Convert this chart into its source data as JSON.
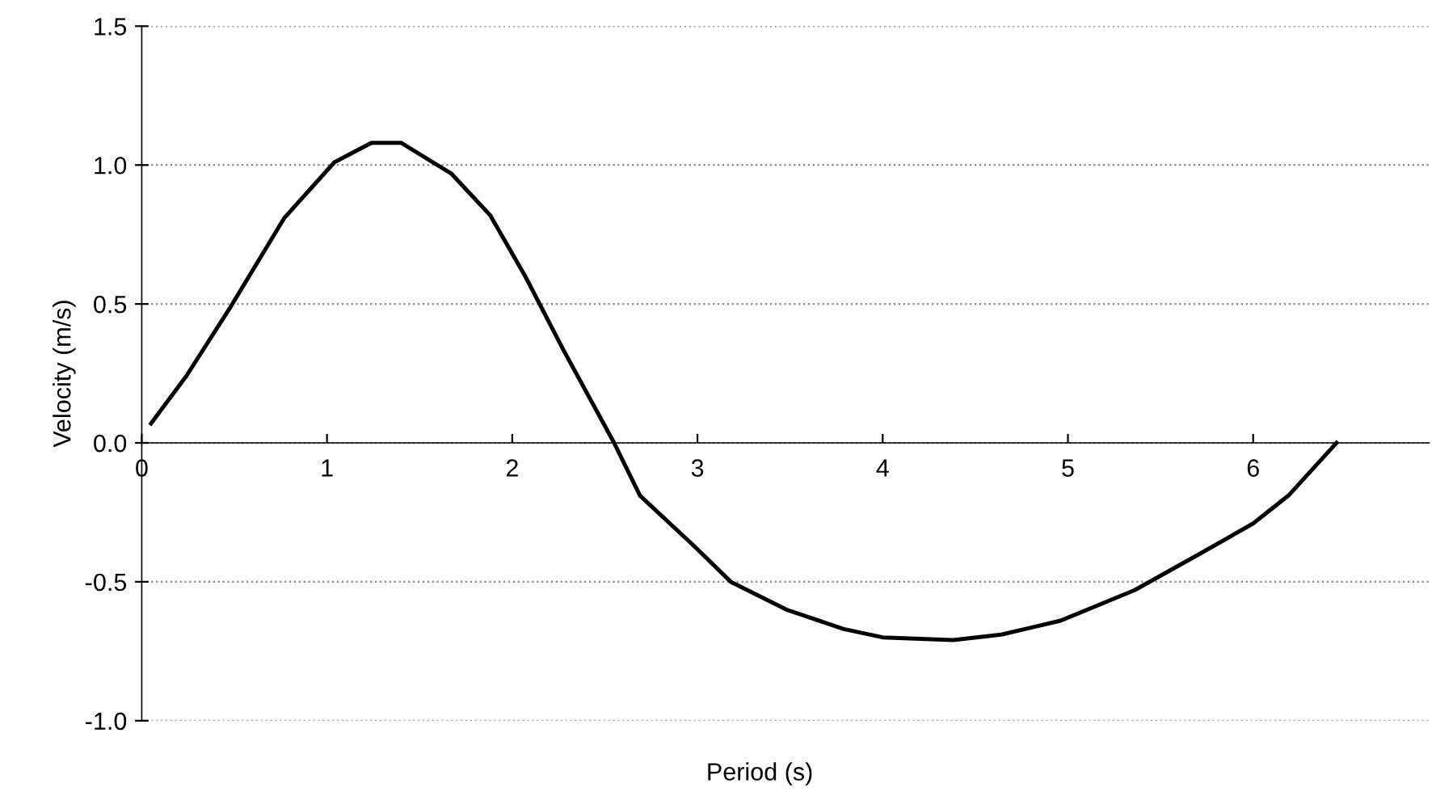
{
  "chart_data": {
    "type": "line",
    "xlabel": "Period (s)",
    "ylabel": "Velocity (m/s)",
    "series": [
      {
        "color": "#000000",
        "x": [
          0.05,
          0.24,
          0.48,
          0.77,
          1.04,
          1.24,
          1.4,
          1.67,
          1.88,
          2.07,
          2.28,
          2.55,
          2.69,
          2.98,
          3.18,
          3.48,
          3.79,
          4.0,
          4.38,
          4.64,
          4.96,
          5.36,
          5.71,
          6.0,
          6.19,
          6.45
        ],
        "values": [
          0.07,
          0.24,
          0.49,
          0.81,
          1.01,
          1.08,
          1.08,
          0.97,
          0.82,
          0.6,
          0.33,
          0.0,
          -0.19,
          -0.37,
          -0.5,
          -0.6,
          -0.67,
          -0.7,
          -0.71,
          -0.69,
          -0.64,
          -0.53,
          -0.4,
          -0.29,
          -0.19,
          0.0
        ]
      }
    ],
    "xlim": [
      0,
      6.95
    ],
    "xticks": [
      0,
      1,
      2,
      3,
      4,
      5,
      6
    ],
    "ylim": [
      -1.0,
      1.5
    ],
    "yticks": [
      {
        "value": -1.0,
        "label": "-1.0"
      },
      {
        "value": -0.5,
        "label": "-0.5"
      },
      {
        "value": 0.0,
        "label": "0.0"
      },
      {
        "value": 0.5,
        "label": "0.5"
      },
      {
        "value": 1.0,
        "label": "1.0"
      },
      {
        "value": 1.5,
        "label": "1.5"
      }
    ],
    "grid": "y",
    "marker": "none",
    "line_style": "solid"
  }
}
